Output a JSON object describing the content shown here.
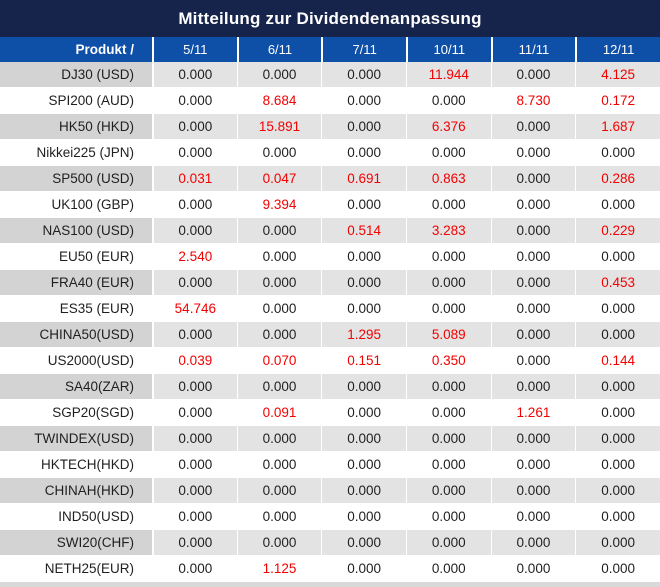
{
  "title": "Mitteilung zur Dividendenanpassung",
  "colors": {
    "title_bar_bg": "#16234b",
    "header_bg": "#0e4fa8",
    "header_text": "#ffffff",
    "stripe_row_bg": "#e3e3e3",
    "stripe_product_bg": "#d3d3d3",
    "value_text": "#1f1f1f",
    "highlight_value_text": "#f40000"
  },
  "table": {
    "product_header": "Produkt /",
    "date_columns": [
      "5/11",
      "6/11",
      "7/11",
      "10/11",
      "11/11",
      "12/11"
    ],
    "zero_value": "0.000",
    "rows": [
      {
        "product": "DJ30 (USD)",
        "values": [
          "0.000",
          "0.000",
          "0.000",
          "11.944",
          "0.000",
          "4.125"
        ]
      },
      {
        "product": "SPI200 (AUD)",
        "values": [
          "0.000",
          "8.684",
          "0.000",
          "0.000",
          "8.730",
          "0.172"
        ]
      },
      {
        "product": "HK50 (HKD)",
        "values": [
          "0.000",
          "15.891",
          "0.000",
          "6.376",
          "0.000",
          "1.687"
        ]
      },
      {
        "product": "Nikkei225 (JPN)",
        "values": [
          "0.000",
          "0.000",
          "0.000",
          "0.000",
          "0.000",
          "0.000"
        ]
      },
      {
        "product": "SP500 (USD)",
        "values": [
          "0.031",
          "0.047",
          "0.691",
          "0.863",
          "0.000",
          "0.286"
        ]
      },
      {
        "product": "UK100 (GBP)",
        "values": [
          "0.000",
          "9.394",
          "0.000",
          "0.000",
          "0.000",
          "0.000"
        ]
      },
      {
        "product": "NAS100 (USD)",
        "values": [
          "0.000",
          "0.000",
          "0.514",
          "3.283",
          "0.000",
          "0.229"
        ]
      },
      {
        "product": "EU50 (EUR)",
        "values": [
          "2.540",
          "0.000",
          "0.000",
          "0.000",
          "0.000",
          "0.000"
        ]
      },
      {
        "product": "FRA40 (EUR)",
        "values": [
          "0.000",
          "0.000",
          "0.000",
          "0.000",
          "0.000",
          "0.453"
        ]
      },
      {
        "product": "ES35 (EUR)",
        "values": [
          "54.746",
          "0.000",
          "0.000",
          "0.000",
          "0.000",
          "0.000"
        ]
      },
      {
        "product": "CHINA50(USD)",
        "values": [
          "0.000",
          "0.000",
          "1.295",
          "5.089",
          "0.000",
          "0.000"
        ]
      },
      {
        "product": "US2000(USD)",
        "values": [
          "0.039",
          "0.070",
          "0.151",
          "0.350",
          "0.000",
          "0.144"
        ]
      },
      {
        "product": "SA40(ZAR)",
        "values": [
          "0.000",
          "0.000",
          "0.000",
          "0.000",
          "0.000",
          "0.000"
        ]
      },
      {
        "product": "SGP20(SGD)",
        "values": [
          "0.000",
          "0.091",
          "0.000",
          "0.000",
          "1.261",
          "0.000"
        ]
      },
      {
        "product": "TWINDEX(USD)",
        "values": [
          "0.000",
          "0.000",
          "0.000",
          "0.000",
          "0.000",
          "0.000"
        ]
      },
      {
        "product": "HKTECH(HKD)",
        "values": [
          "0.000",
          "0.000",
          "0.000",
          "0.000",
          "0.000",
          "0.000"
        ]
      },
      {
        "product": "CHINAH(HKD)",
        "values": [
          "0.000",
          "0.000",
          "0.000",
          "0.000",
          "0.000",
          "0.000"
        ]
      },
      {
        "product": "IND50(USD)",
        "values": [
          "0.000",
          "0.000",
          "0.000",
          "0.000",
          "0.000",
          "0.000"
        ]
      },
      {
        "product": "SWI20(CHF)",
        "values": [
          "0.000",
          "0.000",
          "0.000",
          "0.000",
          "0.000",
          "0.000"
        ]
      },
      {
        "product": "NETH25(EUR)",
        "values": [
          "0.000",
          "1.125",
          "0.000",
          "0.000",
          "0.000",
          "0.000"
        ]
      }
    ]
  }
}
